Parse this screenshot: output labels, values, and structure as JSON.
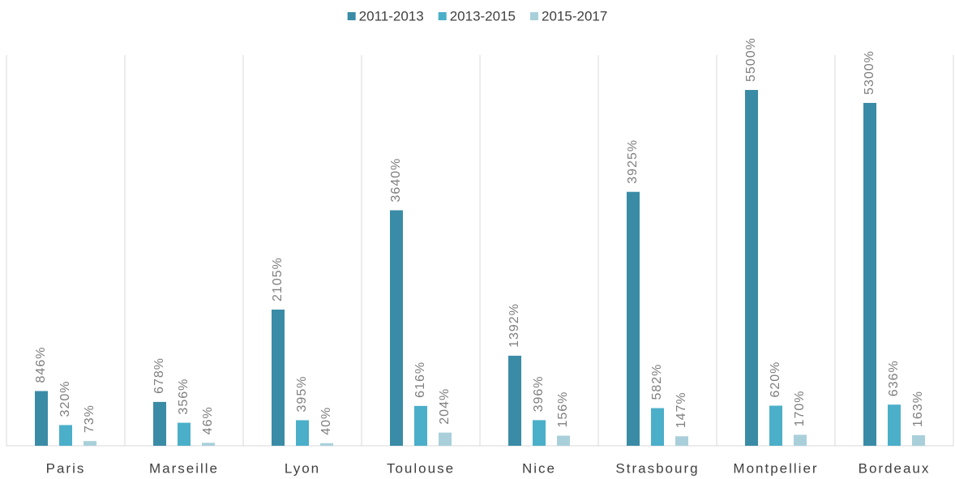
{
  "chart_data": {
    "type": "bar",
    "categories": [
      "Paris",
      "Marseille",
      "Lyon",
      "Toulouse",
      "Nice",
      "Strasbourg",
      "Montpellier",
      "Bordeaux"
    ],
    "series": [
      {
        "name": "2011-2013",
        "color": "#3a8ca6",
        "values": [
          846,
          678,
          2105,
          3640,
          1392,
          3925,
          5500,
          5300
        ],
        "value_labels": [
          "846%",
          "678%",
          "2105%",
          "3640%",
          "1392%",
          "3925%",
          "5500%",
          "5300%"
        ]
      },
      {
        "name": "2013-2015",
        "color": "#4bafc9",
        "values": [
          320,
          356,
          395,
          616,
          396,
          582,
          620,
          636
        ],
        "value_labels": [
          "320%",
          "356%",
          "395%",
          "616%",
          "396%",
          "582%",
          "620%",
          "636%"
        ]
      },
      {
        "name": "2015-2017",
        "color": "#a9d0da",
        "values": [
          73,
          46,
          40,
          204,
          156,
          147,
          170,
          163
        ],
        "value_labels": [
          "73%",
          "46%",
          "40%",
          "204%",
          "156%",
          "147%",
          "170%",
          "163%"
        ]
      }
    ],
    "legend": "top"
  }
}
